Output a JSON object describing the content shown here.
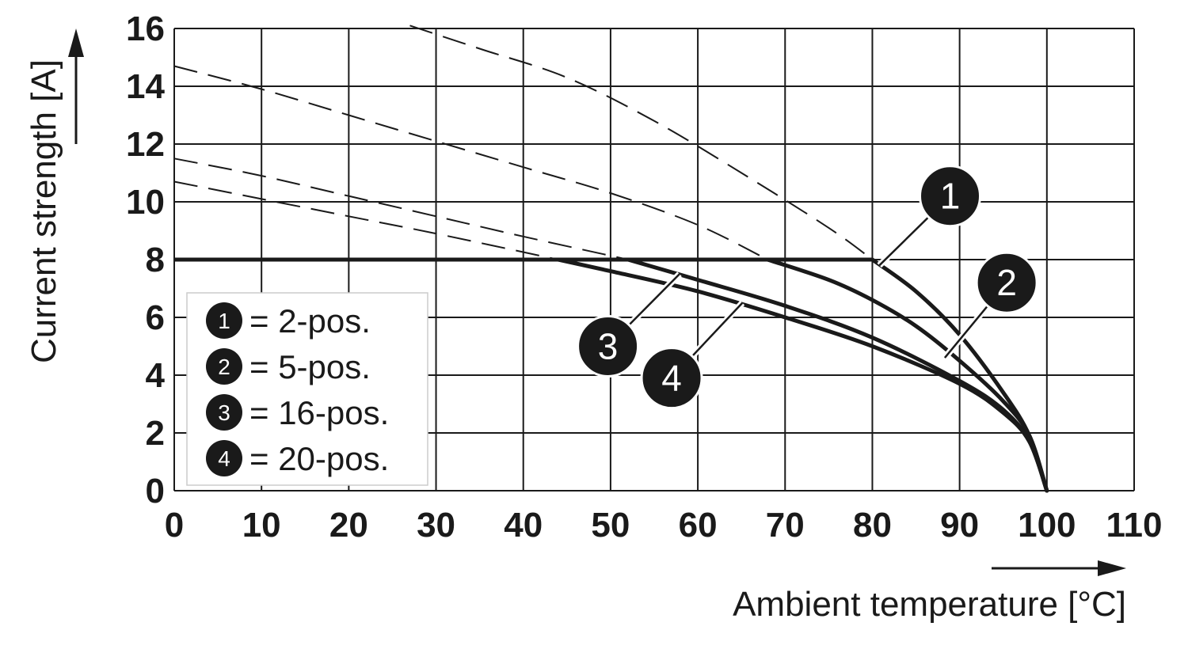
{
  "chart_data": {
    "type": "line",
    "xlabel": "Ambient temperature [°C]",
    "ylabel": "Current strength [A]",
    "xlim": [
      0,
      110
    ],
    "ylim": [
      0,
      16
    ],
    "x_ticks": [
      "0",
      "10",
      "20",
      "30",
      "40",
      "50",
      "60",
      "70",
      "80",
      "90",
      "100",
      "110"
    ],
    "y_ticks": [
      "0",
      "2",
      "4",
      "6",
      "8",
      "10",
      "12",
      "14",
      "16"
    ],
    "grid": true,
    "legend_position": "bottom-left",
    "max_current_line": {
      "y": 8,
      "x_start": 0,
      "x_end": 80
    },
    "series": [
      {
        "id": "1",
        "legend_label": "= 2-pos.",
        "derating": {
          "x": [
            80,
            85,
            90,
            95,
            98,
            100
          ],
          "y": [
            8,
            6.9,
            5.4,
            3.4,
            1.9,
            0
          ]
        },
        "dashed": {
          "x": [
            27,
            35,
            45,
            55,
            65,
            75,
            80
          ],
          "y": [
            16.1,
            15.3,
            14.3,
            12.8,
            11,
            9.1,
            8
          ]
        }
      },
      {
        "id": "2",
        "legend_label": "= 5-pos.",
        "derating": {
          "x": [
            68,
            75,
            80,
            85,
            90,
            95,
            98,
            100
          ],
          "y": [
            8,
            7.3,
            6.6,
            5.7,
            4.5,
            3.1,
            1.9,
            0
          ]
        },
        "dashed": {
          "x": [
            0,
            10,
            20,
            30,
            40,
            50,
            60,
            68
          ],
          "y": [
            14.7,
            13.9,
            13.0,
            12.1,
            11.2,
            10.3,
            9.2,
            8
          ]
        }
      },
      {
        "id": "3",
        "legend_label": "= 16-pos.",
        "derating": {
          "x": [
            52,
            60,
            70,
            80,
            90,
            95,
            98,
            100
          ],
          "y": [
            8,
            7.3,
            6.4,
            5.3,
            3.8,
            2.8,
            1.7,
            0
          ]
        },
        "dashed": {
          "x": [
            0,
            10,
            20,
            30,
            40,
            52
          ],
          "y": [
            11.5,
            10.9,
            10.2,
            9.5,
            8.8,
            8
          ]
        }
      },
      {
        "id": "4",
        "legend_label": "= 20-pos.",
        "derating": {
          "x": [
            44,
            50,
            60,
            70,
            80,
            90,
            95,
            98,
            100
          ],
          "y": [
            8,
            7.6,
            6.9,
            6.0,
            5.0,
            3.7,
            2.7,
            1.7,
            0
          ]
        },
        "dashed": {
          "x": [
            0,
            10,
            20,
            30,
            44
          ],
          "y": [
            10.7,
            10.1,
            9.5,
            8.9,
            8
          ]
        }
      }
    ],
    "callouts": [
      {
        "id": "1",
        "badge_at": [
          88.9,
          10.2
        ],
        "points_to": [
          80.8,
          7.8
        ]
      },
      {
        "id": "2",
        "badge_at": [
          95.4,
          7.2
        ],
        "points_to": [
          88.3,
          4.6
        ]
      },
      {
        "id": "3",
        "badge_at": [
          49.7,
          5.0
        ],
        "points_to": [
          57.9,
          7.5
        ]
      },
      {
        "id": "4",
        "badge_at": [
          57.0,
          3.9
        ],
        "points_to": [
          65.1,
          6.5
        ]
      }
    ]
  }
}
